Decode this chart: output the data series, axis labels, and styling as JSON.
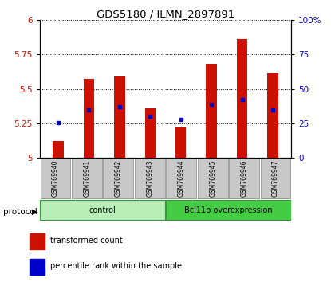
{
  "title": "GDS5180 / ILMN_2897891",
  "samples": [
    "GSM769940",
    "GSM769941",
    "GSM769942",
    "GSM769943",
    "GSM769944",
    "GSM769945",
    "GSM769946",
    "GSM769947"
  ],
  "red_bar_heights": [
    5.12,
    5.57,
    5.59,
    5.36,
    5.22,
    5.68,
    5.86,
    5.61
  ],
  "blue_marker_y": [
    5.255,
    5.35,
    5.37,
    5.3,
    5.28,
    5.385,
    5.42,
    5.35
  ],
  "ylim_left": [
    5.0,
    6.0
  ],
  "ylim_right": [
    0,
    100
  ],
  "yticks_left": [
    5.0,
    5.25,
    5.5,
    5.75,
    6.0
  ],
  "yticks_right": [
    0,
    25,
    50,
    75,
    100
  ],
  "ytick_labels_right": [
    "0",
    "25",
    "50",
    "75",
    "100%"
  ],
  "groups": [
    {
      "label": "control",
      "start": 0,
      "end": 4,
      "color": "#B8EEB8"
    },
    {
      "label": "Bcl11b overexpression",
      "start": 4,
      "end": 8,
      "color": "#44CC44"
    }
  ],
  "bar_color": "#CC1100",
  "marker_color": "#0000CC",
  "axis_left_color": "#CC1100",
  "axis_right_color": "#0000CC",
  "label_bg_color": "#C8C8C8",
  "bar_width": 0.35,
  "protocol_label": "protocol",
  "legend_items": [
    "transformed count",
    "percentile rank within the sample"
  ]
}
